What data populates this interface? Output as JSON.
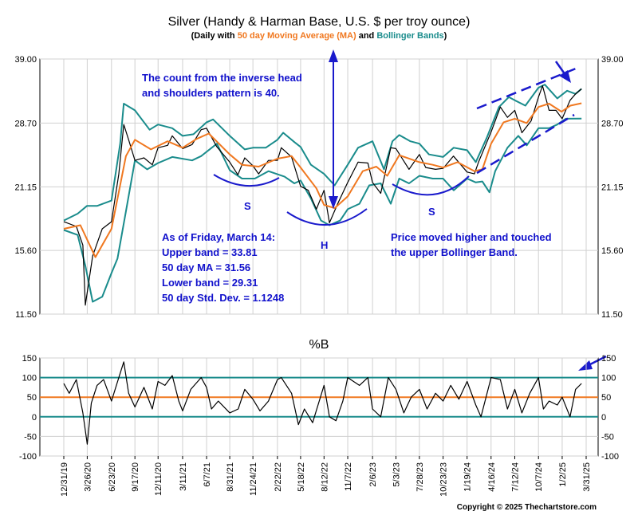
{
  "chart_data": [
    {
      "type": "line",
      "title": "Silver (Handy & Harman Base, U.S. $ per troy ounce)",
      "subtitle": {
        "prefix": "(Daily with ",
        "ma_label": "50 day Moving Average (MA)",
        "and": " and ",
        "bb_label": "Bollinger Bands",
        "suffix": ")"
      },
      "y_scale": "log",
      "ylim": [
        11.5,
        39.0
      ],
      "y_ticks": [
        "39.00",
        "28.70",
        "21.15",
        "15.60",
        "11.50"
      ],
      "y_tick_values": [
        39.0,
        28.7,
        21.15,
        15.6,
        11.5
      ],
      "x_range": [
        "2019-12-31",
        "2025-03-31"
      ],
      "colors": {
        "price": "#000000",
        "ma": "#f07820",
        "bands": "#1a8c8c",
        "annotation": "#1111cc"
      },
      "series": [
        {
          "key": "price",
          "x": [
            "2019-12-31",
            "2020-02-15",
            "2020-03-10",
            "2020-03-19",
            "2020-04-15",
            "2020-05-20",
            "2020-06-23",
            "2020-07-20",
            "2020-08-07",
            "2020-08-25",
            "2020-09-17",
            "2020-10-20",
            "2020-11-20",
            "2020-12-11",
            "2021-01-15",
            "2021-02-01",
            "2021-03-11",
            "2021-04-15",
            "2021-05-18",
            "2021-06-07",
            "2021-07-15",
            "2021-08-31",
            "2021-09-30",
            "2021-10-25",
            "2021-11-24",
            "2021-12-15",
            "2022-01-20",
            "2022-02-22",
            "2022-03-08",
            "2022-04-15",
            "2022-05-18",
            "2022-06-15",
            "2022-07-15",
            "2022-08-12",
            "2022-09-01",
            "2022-10-01",
            "2022-11-07",
            "2022-12-15",
            "2023-01-20",
            "2023-02-06",
            "2023-03-08",
            "2023-04-14",
            "2023-05-03",
            "2023-06-20",
            "2023-07-28",
            "2023-08-20",
            "2023-09-25",
            "2023-10-23",
            "2023-11-30",
            "2024-01-19",
            "2024-02-15",
            "2024-03-01",
            "2024-04-16",
            "2024-05-20",
            "2024-06-15",
            "2024-07-12",
            "2024-08-07",
            "2024-09-10",
            "2024-10-07",
            "2024-10-22",
            "2024-11-15",
            "2024-12-10",
            "2025-01-02",
            "2025-01-31",
            "2025-02-20",
            "2025-03-14"
          ],
          "values": [
            17.9,
            17.5,
            16.0,
            12.0,
            15.2,
            17.3,
            17.9,
            22.5,
            28.5,
            26.5,
            24.0,
            24.3,
            23.5,
            25.5,
            25.8,
            27.0,
            25.4,
            25.9,
            27.8,
            28.0,
            25.6,
            23.8,
            22.4,
            24.3,
            23.4,
            22.5,
            24.0,
            24.0,
            25.5,
            24.4,
            21.2,
            20.8,
            19.0,
            20.8,
            17.8,
            19.5,
            21.6,
            23.8,
            23.7,
            21.6,
            20.5,
            25.5,
            25.4,
            23.0,
            24.7,
            23.2,
            23.0,
            23.1,
            24.5,
            22.7,
            22.5,
            23.8,
            27.5,
            31.0,
            29.5,
            30.5,
            27.4,
            29.0,
            32.5,
            34.3,
            30.5,
            30.5,
            29.3,
            32.0,
            33.0,
            33.8
          ]
        },
        {
          "key": "ma",
          "x": [
            "2019-12-31",
            "2020-03-01",
            "2020-04-25",
            "2020-06-23",
            "2020-08-15",
            "2020-09-17",
            "2020-11-15",
            "2021-01-15",
            "2021-03-11",
            "2021-05-01",
            "2021-06-15",
            "2021-08-31",
            "2021-10-15",
            "2021-12-15",
            "2022-02-22",
            "2022-04-15",
            "2022-05-18",
            "2022-07-15",
            "2022-08-12",
            "2022-09-20",
            "2022-11-07",
            "2023-01-01",
            "2023-02-20",
            "2023-04-01",
            "2023-05-15",
            "2023-07-28",
            "2023-09-15",
            "2023-10-23",
            "2023-12-15",
            "2024-02-15",
            "2024-03-15",
            "2024-04-16",
            "2024-06-01",
            "2024-07-12",
            "2024-08-25",
            "2024-10-07",
            "2024-11-15",
            "2024-12-31",
            "2025-02-01",
            "2025-03-14"
          ],
          "values": [
            17.3,
            17.6,
            15.1,
            17.3,
            24.5,
            26.5,
            25.3,
            26.3,
            25.5,
            26.6,
            27.3,
            24.7,
            23.5,
            23.3,
            24.2,
            24.5,
            23.2,
            21.0,
            19.4,
            19.1,
            20.2,
            22.8,
            23.3,
            22.3,
            24.6,
            23.8,
            23.5,
            23.2,
            23.8,
            22.8,
            23.0,
            26.0,
            28.8,
            29.3,
            28.7,
            31.0,
            31.5,
            30.3,
            31.2,
            31.56
          ]
        },
        {
          "key": "upper_band",
          "x": [
            "2019-12-31",
            "2020-02-20",
            "2020-03-25",
            "2020-05-01",
            "2020-06-23",
            "2020-07-25",
            "2020-08-07",
            "2020-09-17",
            "2020-11-10",
            "2020-12-11",
            "2021-02-01",
            "2021-03-11",
            "2021-04-20",
            "2021-06-07",
            "2021-07-01",
            "2021-08-31",
            "2021-10-25",
            "2021-11-24",
            "2022-01-10",
            "2022-02-22",
            "2022-03-15",
            "2022-04-25",
            "2022-05-18",
            "2022-06-25",
            "2022-08-12",
            "2022-09-20",
            "2022-11-07",
            "2022-12-15",
            "2023-02-06",
            "2023-03-20",
            "2023-04-20",
            "2023-05-15",
            "2023-06-25",
            "2023-07-28",
            "2023-09-01",
            "2023-10-23",
            "2023-12-01",
            "2024-01-19",
            "2024-02-20",
            "2024-04-01",
            "2024-05-15",
            "2024-06-20",
            "2024-07-12",
            "2024-08-20",
            "2024-10-07",
            "2024-10-30",
            "2024-12-15",
            "2025-01-20",
            "2025-02-20",
            "2025-03-14"
          ],
          "values": [
            18.0,
            18.6,
            19.3,
            19.3,
            19.8,
            26.0,
            31.5,
            30.5,
            27.8,
            28.5,
            28.0,
            27.0,
            27.2,
            28.8,
            29.2,
            27.0,
            25.3,
            25.5,
            25.5,
            26.5,
            27.4,
            26.2,
            25.6,
            23.5,
            22.5,
            21.3,
            23.5,
            25.5,
            26.3,
            23.0,
            26.3,
            27.1,
            26.3,
            26.0,
            24.7,
            24.4,
            25.5,
            25.2,
            23.8,
            26.8,
            31.0,
            32.5,
            32.0,
            31.2,
            34.0,
            34.5,
            32.3,
            33.5,
            33.0,
            33.81
          ]
        },
        {
          "key": "lower_band",
          "x": [
            "2019-12-31",
            "2020-02-20",
            "2020-03-19",
            "2020-04-15",
            "2020-05-20",
            "2020-06-23",
            "2020-07-15",
            "2020-08-15",
            "2020-09-17",
            "2020-11-01",
            "2020-12-11",
            "2021-02-01",
            "2021-04-15",
            "2021-05-18",
            "2021-07-15",
            "2021-08-31",
            "2021-10-15",
            "2021-12-01",
            "2022-01-20",
            "2022-03-20",
            "2022-04-25",
            "2022-05-18",
            "2022-06-25",
            "2022-08-01",
            "2022-09-01",
            "2022-10-10",
            "2022-11-07",
            "2022-12-20",
            "2023-01-25",
            "2023-03-08",
            "2023-04-14",
            "2023-05-15",
            "2023-06-20",
            "2023-07-28",
            "2023-09-15",
            "2023-10-23",
            "2023-12-01",
            "2024-01-19",
            "2024-02-20",
            "2024-03-15",
            "2024-04-10",
            "2024-05-01",
            "2024-06-15",
            "2024-07-25",
            "2024-08-25",
            "2024-10-07",
            "2024-11-15",
            "2024-12-15",
            "2025-01-15",
            "2025-03-14"
          ],
          "values": [
            17.2,
            16.8,
            14.5,
            12.2,
            12.5,
            14.0,
            15.0,
            18.8,
            24.0,
            23.0,
            23.7,
            24.4,
            24.0,
            24.5,
            26.0,
            22.9,
            22.0,
            22.0,
            22.8,
            22.2,
            21.5,
            21.8,
            20.0,
            18.0,
            17.6,
            18.0,
            19.0,
            19.5,
            21.3,
            21.5,
            19.5,
            22.0,
            21.5,
            22.3,
            22.0,
            22.0,
            20.8,
            22.0,
            21.6,
            21.7,
            20.6,
            22.8,
            25.5,
            27.0,
            25.8,
            28.0,
            28.0,
            28.5,
            29.3,
            29.31
          ]
        }
      ],
      "annotations": {
        "count_text": [
          "The count from the inverse head",
          "and shoulders pattern is 40."
        ],
        "friday_text": [
          "As of Friday, March 14:",
          "Upper band = 33.81",
          "50 day MA = 31.56",
          "Lower band = 29.31",
          "50 day Std. Dev. = 1.1248"
        ],
        "price_text": [
          "Price moved higher and touched",
          "the upper Bollinger Band."
        ],
        "left_shoulder": "S",
        "head": "H",
        "right_shoulder": "S"
      }
    },
    {
      "type": "line",
      "title": "%B",
      "ylim": [
        -100,
        150
      ],
      "y_ticks": [
        "150",
        "100",
        "50",
        "0",
        "-50",
        "-100"
      ],
      "y_tick_values": [
        150,
        100,
        50,
        0,
        -50,
        -100
      ],
      "reference_lines": [
        {
          "value": 100,
          "color": "#1a8c8c"
        },
        {
          "value": 50,
          "color": "#f07820"
        },
        {
          "value": 0,
          "color": "#1a8c8c"
        }
      ],
      "x_ticks": [
        "12/31/19",
        "3/26/20",
        "6/23/20",
        "9/17/20",
        "12/11/20",
        "3/11/21",
        "6/7/21",
        "8/31/21",
        "11/24/21",
        "2/22/22",
        "5/18/22",
        "8/12/22",
        "11/7/22",
        "2/6/23",
        "5/3/23",
        "7/28/23",
        "10/23/23",
        "1/19/24",
        "4/16/24",
        "7/12/24",
        "10/7/24",
        "1/2/25",
        "3/31/25"
      ],
      "x_tick_dates": [
        "2019-12-31",
        "2020-03-26",
        "2020-06-23",
        "2020-09-17",
        "2020-12-11",
        "2021-03-11",
        "2021-06-07",
        "2021-08-31",
        "2021-11-24",
        "2022-02-22",
        "2022-05-18",
        "2022-08-12",
        "2022-11-07",
        "2023-02-06",
        "2023-05-03",
        "2023-07-28",
        "2023-10-23",
        "2024-01-19",
        "2024-04-16",
        "2024-07-12",
        "2024-10-07",
        "2025-01-02",
        "2025-03-31"
      ],
      "series": [
        {
          "key": "pctb",
          "x": [
            "2019-12-31",
            "2020-01-20",
            "2020-02-15",
            "2020-03-10",
            "2020-03-26",
            "2020-04-10",
            "2020-05-01",
            "2020-05-25",
            "2020-06-23",
            "2020-07-20",
            "2020-08-07",
            "2020-08-25",
            "2020-09-17",
            "2020-10-20",
            "2020-11-20",
            "2020-12-11",
            "2021-01-05",
            "2021-02-01",
            "2021-02-25",
            "2021-03-11",
            "2021-04-10",
            "2021-05-18",
            "2021-06-07",
            "2021-06-25",
            "2021-07-20",
            "2021-08-31",
            "2021-10-01",
            "2021-10-25",
            "2021-11-24",
            "2021-12-20",
            "2022-01-20",
            "2022-02-22",
            "2022-03-08",
            "2022-04-15",
            "2022-05-10",
            "2022-06-01",
            "2022-07-01",
            "2022-08-12",
            "2022-09-01",
            "2022-09-25",
            "2022-10-20",
            "2022-11-07",
            "2022-12-20",
            "2023-01-20",
            "2023-02-06",
            "2023-03-08",
            "2023-04-05",
            "2023-05-03",
            "2023-06-01",
            "2023-06-28",
            "2023-07-28",
            "2023-08-25",
            "2023-09-25",
            "2023-10-23",
            "2023-11-20",
            "2023-12-20",
            "2024-01-19",
            "2024-02-20",
            "2024-03-10",
            "2024-04-16",
            "2024-05-20",
            "2024-06-15",
            "2024-07-12",
            "2024-08-07",
            "2024-09-05",
            "2024-10-07",
            "2024-10-25",
            "2024-11-15",
            "2024-12-15",
            "2025-01-02",
            "2025-01-31",
            "2025-02-20",
            "2025-03-14"
          ],
          "values": [
            85,
            60,
            95,
            10,
            -70,
            35,
            80,
            95,
            40,
            100,
            140,
            60,
            25,
            75,
            20,
            90,
            80,
            105,
            40,
            15,
            70,
            100,
            75,
            20,
            40,
            10,
            20,
            70,
            45,
            15,
            40,
            95,
            100,
            60,
            -20,
            20,
            -15,
            80,
            0,
            -10,
            40,
            100,
            80,
            100,
            20,
            0,
            100,
            70,
            10,
            50,
            70,
            20,
            60,
            40,
            80,
            45,
            90,
            30,
            0,
            100,
            95,
            20,
            70,
            10,
            60,
            100,
            20,
            40,
            30,
            50,
            0,
            70,
            85
          ]
        }
      ]
    }
  ],
  "copyright": "Copyright © 2025 Thechartstore.com"
}
